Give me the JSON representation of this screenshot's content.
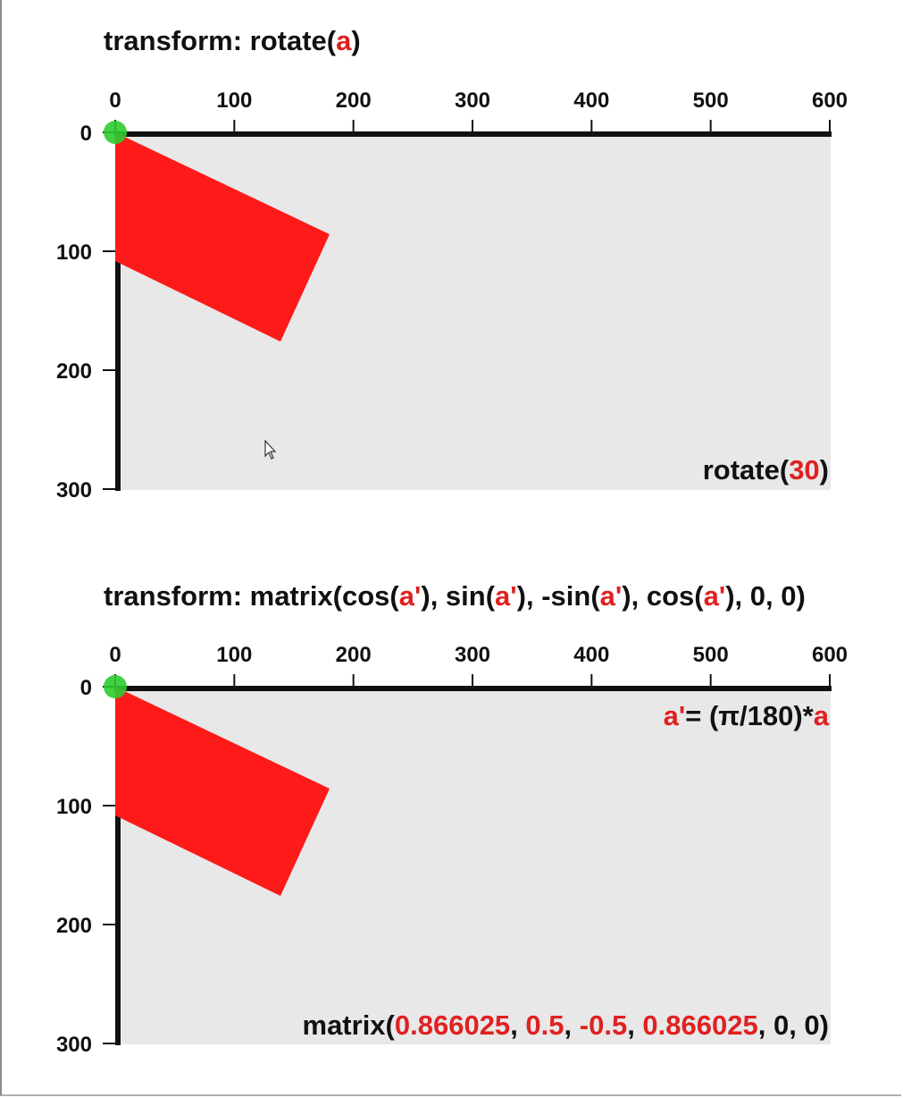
{
  "colors": {
    "rect": "#ff1a1a",
    "background_area": "#e8e8e8",
    "axis": "#111111",
    "origin": "#2ecc2e",
    "highlight": "#e02020"
  },
  "top_panel": {
    "title": {
      "prefix": "transform: rotate(",
      "var": "a",
      "suffix": ")"
    },
    "x_ticks": [
      "0",
      "100",
      "200",
      "300",
      "400",
      "500",
      "600"
    ],
    "y_ticks": [
      "0",
      "100",
      "200",
      "300"
    ],
    "caption": {
      "prefix": "rotate(",
      "value": "30",
      "suffix": ")"
    }
  },
  "bottom_panel": {
    "title": {
      "p1": "transform: matrix(cos(",
      "v1": "a'",
      "p2": "), sin(",
      "v2": "a'",
      "p3": "), -sin(",
      "v3": "a'",
      "p4": "), cos(",
      "v4": "a'",
      "p5": "), 0, 0)"
    },
    "formula": {
      "lhs": "a'",
      "middle": "= (π/180)*",
      "rhs": "a"
    },
    "x_ticks": [
      "0",
      "100",
      "200",
      "300",
      "400",
      "500",
      "600"
    ],
    "y_ticks": [
      "0",
      "100",
      "200",
      "300"
    ],
    "caption": {
      "prefix": "matrix(",
      "m1": "0.866025",
      "sep1": ", ",
      "m2": "0.5",
      "sep2": ", ",
      "m3": "-0.5",
      "sep3": ", ",
      "m4": "0.866025",
      "suffix": ", 0, 0)"
    }
  }
}
